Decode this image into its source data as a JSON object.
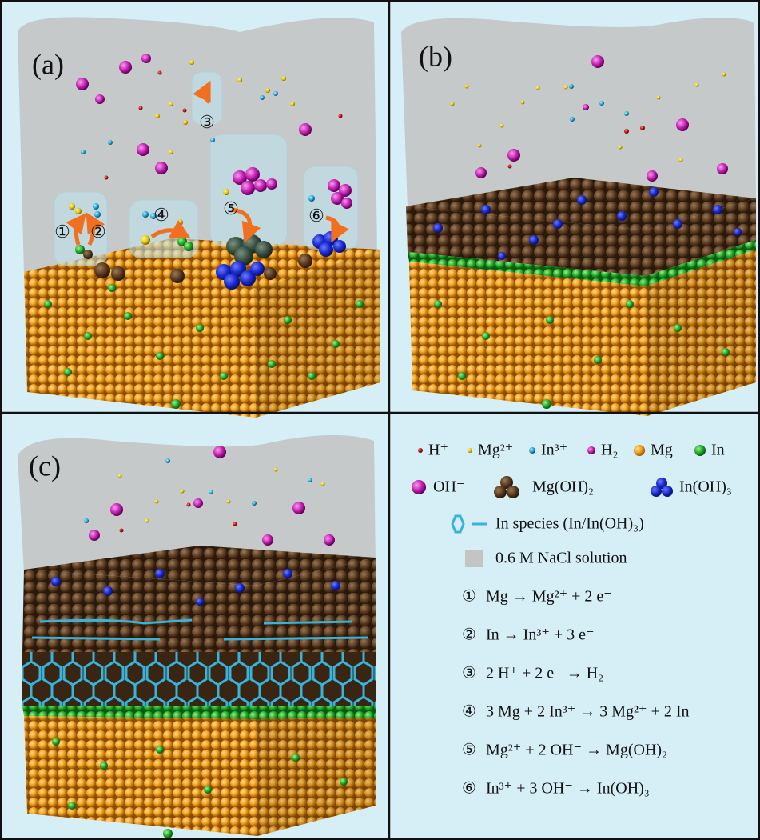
{
  "panels": [
    {
      "label": "(a)",
      "markers": [
        "①",
        "②",
        "③",
        "④",
        "⑤",
        "⑥"
      ]
    },
    {
      "label": "(b)"
    },
    {
      "label": "(c)"
    }
  ],
  "legend": {
    "species": [
      "H⁺",
      "Mg²⁺",
      "In³⁺",
      "H₂",
      "Mg",
      "In",
      "OH⁻",
      "Mg(OH)₂",
      "In(OH)₃"
    ],
    "in_species": "In species (In/In(OH)₃)",
    "solution": "0.6 M NaCl solution",
    "reactions": [
      {
        "num": "①",
        "eq": "Mg → Mg²⁺ + 2 e⁻"
      },
      {
        "num": "②",
        "eq": "In → In³⁺ + 3 e⁻"
      },
      {
        "num": "③",
        "eq": "2 H⁺ + 2 e⁻ → H₂"
      },
      {
        "num": "④",
        "eq": "3 Mg + 2 In³⁺ → 3 Mg²⁺ + 2 In"
      },
      {
        "num": "⑤",
        "eq": "Mg²⁺ + 2 OH⁻ → Mg(OH)₂"
      },
      {
        "num": "⑥",
        "eq": "In³⁺ + 3 OH⁻ → In(OH)₃"
      }
    ]
  }
}
